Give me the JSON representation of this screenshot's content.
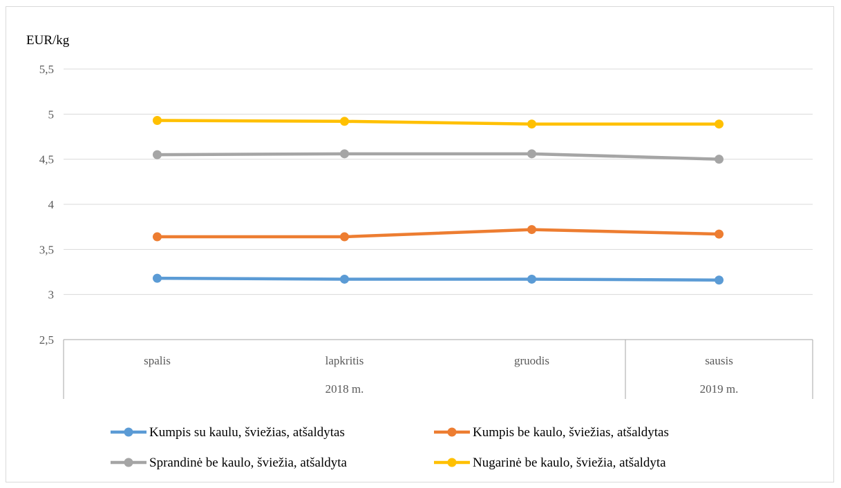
{
  "chart_data": {
    "type": "line",
    "ylabel": "EUR/kg",
    "ylim": [
      2.5,
      5.5
    ],
    "y_ticks": [
      "2,5",
      "3",
      "3,5",
      "4",
      "4,5",
      "5",
      "5,5"
    ],
    "y_tick_values": [
      2.5,
      3,
      3.5,
      4,
      4.5,
      5,
      5.5
    ],
    "categories": [
      "spalis",
      "lapkritis",
      "gruodis",
      "sausis"
    ],
    "year_groups": [
      {
        "label": "2018 m.",
        "categories": [
          "spalis",
          "lapkritis",
          "gruodis"
        ]
      },
      {
        "label": "2019 m.",
        "categories": [
          "sausis"
        ]
      }
    ],
    "grid": true,
    "legend_position": "bottom",
    "series": [
      {
        "name": "Kumpis su kaulu, šviežias, atšaldytas",
        "color": "#5b9bd5",
        "values": [
          3.18,
          3.17,
          3.17,
          3.16
        ]
      },
      {
        "name": "Kumpis be kaulo, šviežias, atšaldytas",
        "color": "#ed7d31",
        "values": [
          3.64,
          3.64,
          3.72,
          3.67
        ]
      },
      {
        "name": "Sprandinė be kaulo, šviežia, atšaldyta",
        "color": "#a5a5a5",
        "values": [
          4.55,
          4.56,
          4.56,
          4.5
        ]
      },
      {
        "name": "Nugarinė be kaulo, šviežia, atšaldyta",
        "color": "#ffc000",
        "values": [
          4.93,
          4.92,
          4.89,
          4.89
        ]
      }
    ]
  }
}
